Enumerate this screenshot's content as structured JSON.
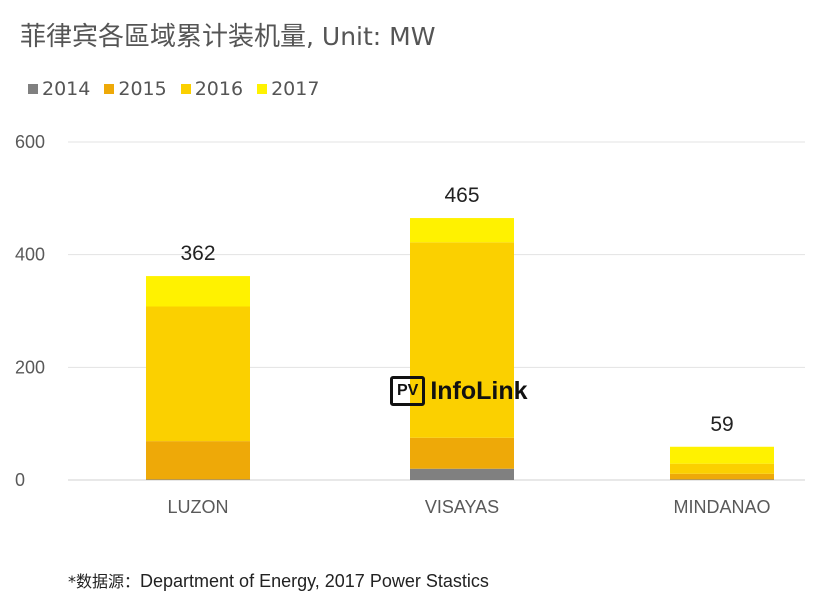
{
  "title": {
    "main": "菲律宾各區域累计装机量",
    "unit": ", Unit: MW"
  },
  "watermark": {
    "badge": "PV",
    "text": "InfoLink"
  },
  "source": {
    "prefix": "*数据源：",
    "text": "Department of Energy, 2017 Power Stastics"
  },
  "chart_data": {
    "type": "bar",
    "stacked": true,
    "title": "菲律宾各區域累计装机量, Unit: MW",
    "xlabel": "",
    "ylabel": "",
    "ylim": [
      0,
      600
    ],
    "yticks": [
      "0",
      "200",
      "400",
      "600"
    ],
    "grid": true,
    "legend_position": "top-left",
    "categories": [
      "LUZON",
      "VISAYAS",
      "MINDANAO"
    ],
    "series": [
      {
        "name": "2014",
        "color": "#808080",
        "values": [
          1,
          20,
          1
        ]
      },
      {
        "name": "2015",
        "color": "#EEA908",
        "values": [
          68,
          55,
          10
        ]
      },
      {
        "name": "2016",
        "color": "#FBD000",
        "values": [
          239,
          347,
          18
        ]
      },
      {
        "name": "2017",
        "color": "#FFF200",
        "values": [
          54,
          43,
          30
        ]
      }
    ],
    "totals": [
      362,
      465,
      59
    ]
  }
}
